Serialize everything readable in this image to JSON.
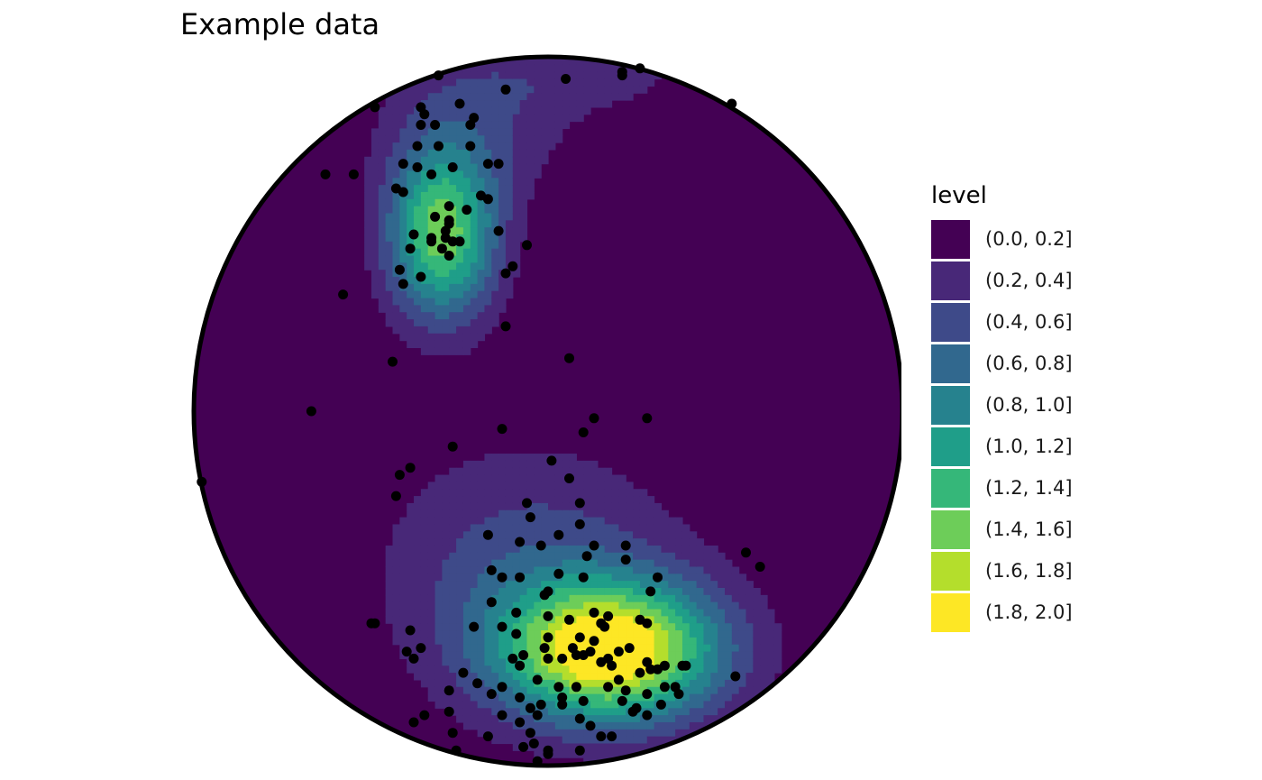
{
  "title": "Example data",
  "chart_data": {
    "type": "contour",
    "projection": "stereonet",
    "title": "Example data",
    "legend": {
      "title": "level",
      "position": "right",
      "entries": [
        {
          "label": "(0.0, 0.2]",
          "color": "#440154"
        },
        {
          "label": "(0.2, 0.4]",
          "color": "#482878"
        },
        {
          "label": "(0.4, 0.6]",
          "color": "#3E4A89"
        },
        {
          "label": "(0.6, 0.8]",
          "color": "#31688E"
        },
        {
          "label": "(0.8, 1.0]",
          "color": "#26828E"
        },
        {
          "label": "(1.0, 1.2]",
          "color": "#1F9E89"
        },
        {
          "label": "(1.2, 1.4]",
          "color": "#35B779"
        },
        {
          "label": "(1.4, 1.6]",
          "color": "#6DCD59"
        },
        {
          "label": "(1.6, 1.8]",
          "color": "#B4DE2C"
        },
        {
          "label": "(1.8, 2.0]",
          "color": "#FDE725"
        }
      ]
    },
    "density_peaks": [
      {
        "x": -0.3,
        "y": 0.5,
        "sx": 0.11,
        "sy": 0.17,
        "amp": 1.5
      },
      {
        "x": 0.18,
        "y": -0.68,
        "sx": 0.22,
        "sy": 0.14,
        "amp": 1.95
      },
      {
        "x": -0.05,
        "y": -0.45,
        "sx": 0.3,
        "sy": 0.25,
        "amp": 0.5
      },
      {
        "x": -0.2,
        "y": 0.8,
        "sx": 0.2,
        "sy": 0.15,
        "amp": 0.35
      },
      {
        "x": 0.1,
        "y": 0.95,
        "sx": 0.3,
        "sy": 0.08,
        "amp": 0.25
      }
    ],
    "points": [
      [
        -0.31,
        0.95
      ],
      [
        -0.25,
        0.87
      ],
      [
        -0.49,
        0.86
      ],
      [
        -0.36,
        0.86
      ],
      [
        -0.35,
        0.84
      ],
      [
        -0.21,
        0.83
      ],
      [
        -0.36,
        0.81
      ],
      [
        -0.32,
        0.81
      ],
      [
        -0.22,
        0.81
      ],
      [
        -0.37,
        0.75
      ],
      [
        -0.31,
        0.75
      ],
      [
        -0.22,
        0.75
      ],
      [
        -0.41,
        0.7
      ],
      [
        -0.37,
        0.69
      ],
      [
        -0.33,
        0.67
      ],
      [
        -0.27,
        0.69
      ],
      [
        -0.17,
        0.7
      ],
      [
        -0.63,
        0.67
      ],
      [
        -0.55,
        0.67
      ],
      [
        -0.43,
        0.63
      ],
      [
        -0.41,
        0.62
      ],
      [
        -0.19,
        0.61
      ],
      [
        -0.28,
        0.58
      ],
      [
        -0.23,
        0.57
      ],
      [
        -0.32,
        0.55
      ],
      [
        -0.28,
        0.54
      ],
      [
        -0.28,
        0.53
      ],
      [
        -0.29,
        0.51
      ],
      [
        -0.38,
        0.5
      ],
      [
        -0.33,
        0.49
      ],
      [
        -0.29,
        0.49
      ],
      [
        -0.27,
        0.48
      ],
      [
        -0.25,
        0.48
      ],
      [
        -0.14,
        0.51
      ],
      [
        -0.33,
        0.48
      ],
      [
        -0.39,
        0.46
      ],
      [
        -0.3,
        0.46
      ],
      [
        -0.28,
        0.44
      ],
      [
        -0.42,
        0.4
      ],
      [
        -0.36,
        0.38
      ],
      [
        -0.41,
        0.36
      ],
      [
        -0.12,
        0.39
      ],
      [
        -0.1,
        0.41
      ],
      [
        -0.58,
        0.33
      ],
      [
        -0.12,
        0.24
      ],
      [
        -0.44,
        0.14
      ],
      [
        0.06,
        0.15
      ],
      [
        -0.67,
        0.0
      ],
      [
        -0.13,
        -0.05
      ],
      [
        0.1,
        -0.06
      ],
      [
        0.13,
        -0.02
      ],
      [
        -0.27,
        -0.1
      ],
      [
        0.01,
        -0.14
      ],
      [
        -0.39,
        -0.16
      ],
      [
        -0.42,
        -0.18
      ],
      [
        -0.43,
        -0.24
      ],
      [
        0.06,
        -0.19
      ],
      [
        -0.06,
        -0.26
      ],
      [
        -0.05,
        -0.3
      ],
      [
        0.09,
        -0.26
      ],
      [
        0.09,
        -0.32
      ],
      [
        -0.17,
        -0.35
      ],
      [
        -0.08,
        -0.37
      ],
      [
        0.03,
        -0.35
      ],
      [
        0.13,
        -0.38
      ],
      [
        -0.16,
        -0.45
      ],
      [
        -0.13,
        -0.47
      ],
      [
        0.03,
        -0.46
      ],
      [
        -0.02,
        -0.38
      ],
      [
        0.11,
        -0.41
      ],
      [
        -0.08,
        -0.47
      ],
      [
        0.22,
        -0.42
      ],
      [
        0.31,
        -0.47
      ],
      [
        0.1,
        -0.47
      ],
      [
        0.29,
        -0.51
      ],
      [
        0.0,
        -0.51
      ],
      [
        -0.01,
        -0.52
      ],
      [
        -0.09,
        -0.57
      ],
      [
        0.0,
        -0.58
      ],
      [
        0.13,
        -0.57
      ],
      [
        0.26,
        -0.59
      ],
      [
        0.15,
        -0.6
      ],
      [
        0.06,
        -0.59
      ],
      [
        0.09,
        -0.64
      ],
      [
        -0.09,
        -0.63
      ],
      [
        0.13,
        -0.65
      ],
      [
        0.0,
        -0.64
      ],
      [
        -0.01,
        -0.67
      ],
      [
        0.12,
        -0.68
      ],
      [
        0.2,
        -0.68
      ],
      [
        0.23,
        -0.67
      ],
      [
        0.17,
        -0.7
      ],
      [
        0.18,
        -0.72
      ],
      [
        0.28,
        -0.71
      ],
      [
        0.16,
        -0.61
      ],
      [
        0.07,
        -0.67
      ],
      [
        0.2,
        -0.76
      ],
      [
        0.17,
        -0.78
      ],
      [
        0.08,
        -0.78
      ],
      [
        0.03,
        -0.78
      ],
      [
        -0.08,
        -0.72
      ],
      [
        -0.03,
        -0.76
      ],
      [
        -0.07,
        -0.69
      ],
      [
        -0.1,
        -0.7
      ],
      [
        0.0,
        -0.7
      ],
      [
        0.04,
        -0.7
      ],
      [
        0.08,
        -0.69
      ],
      [
        0.1,
        -0.69
      ],
      [
        0.15,
        -0.71
      ],
      [
        0.26,
        -0.74
      ],
      [
        0.29,
        -0.73
      ],
      [
        0.33,
        -0.72
      ],
      [
        0.33,
        -0.78
      ],
      [
        0.28,
        -0.8
      ],
      [
        0.22,
        -0.79
      ],
      [
        0.21,
        -0.82
      ],
      [
        0.25,
        -0.84
      ],
      [
        0.38,
        -0.72
      ],
      [
        0.39,
        -0.72
      ],
      [
        0.36,
        -0.78
      ],
      [
        0.32,
        -0.83
      ],
      [
        0.28,
        -0.86
      ],
      [
        0.1,
        -0.82
      ],
      [
        0.04,
        -0.83
      ],
      [
        -0.02,
        -0.83
      ],
      [
        0.04,
        -0.81
      ],
      [
        -0.05,
        -0.84
      ],
      [
        -0.08,
        -0.81
      ],
      [
        -0.16,
        -0.8
      ],
      [
        -0.13,
        -0.78
      ],
      [
        -0.2,
        -0.77
      ],
      [
        -0.28,
        -0.79
      ],
      [
        -0.28,
        -0.85
      ],
      [
        -0.13,
        -0.86
      ],
      [
        -0.03,
        -0.86
      ],
      [
        0.09,
        -0.87
      ],
      [
        -0.05,
        -0.91
      ],
      [
        -0.04,
        -0.94
      ],
      [
        -0.17,
        -0.92
      ],
      [
        -0.08,
        -0.88
      ],
      [
        0.12,
        -0.89
      ],
      [
        -0.27,
        -0.91
      ],
      [
        -0.26,
        -0.96
      ],
      [
        -0.07,
        -0.95
      ],
      [
        0.0,
        -0.97
      ],
      [
        0.0,
        -0.96
      ],
      [
        -0.03,
        -0.99
      ],
      [
        0.09,
        -0.96
      ],
      [
        0.15,
        -0.92
      ],
      [
        0.18,
        -0.92
      ],
      [
        0.24,
        -0.85
      ],
      [
        0.37,
        -0.8
      ],
      [
        0.31,
        -0.73
      ],
      [
        -0.4,
        -0.68
      ],
      [
        -0.35,
        -0.86
      ],
      [
        -0.38,
        -0.88
      ],
      [
        -0.21,
        -0.61
      ],
      [
        -0.16,
        -0.54
      ],
      [
        -0.13,
        -0.61
      ],
      [
        -0.24,
        -0.74
      ],
      [
        -0.49,
        -0.6
      ],
      [
        -0.5,
        -0.6
      ],
      [
        -0.39,
        -0.62
      ],
      [
        -0.38,
        -0.7
      ],
      [
        -0.36,
        -0.67
      ],
      [
        0.28,
        -0.6
      ],
      [
        0.17,
        -0.58
      ],
      [
        0.22,
        -0.38
      ],
      [
        0.56,
        -0.4
      ],
      [
        0.6,
        -0.44
      ],
      [
        0.53,
        -0.75
      ],
      [
        -0.98,
        -0.2
      ],
      [
        0.28,
        -0.02
      ],
      [
        0.52,
        0.87
      ],
      [
        0.26,
        0.97
      ],
      [
        0.21,
        0.96
      ],
      [
        0.21,
        0.95
      ],
      [
        0.05,
        0.94
      ],
      [
        -0.12,
        0.91
      ],
      [
        -0.14,
        0.7
      ],
      [
        -0.17,
        0.6
      ],
      [
        -0.06,
        0.47
      ]
    ]
  }
}
